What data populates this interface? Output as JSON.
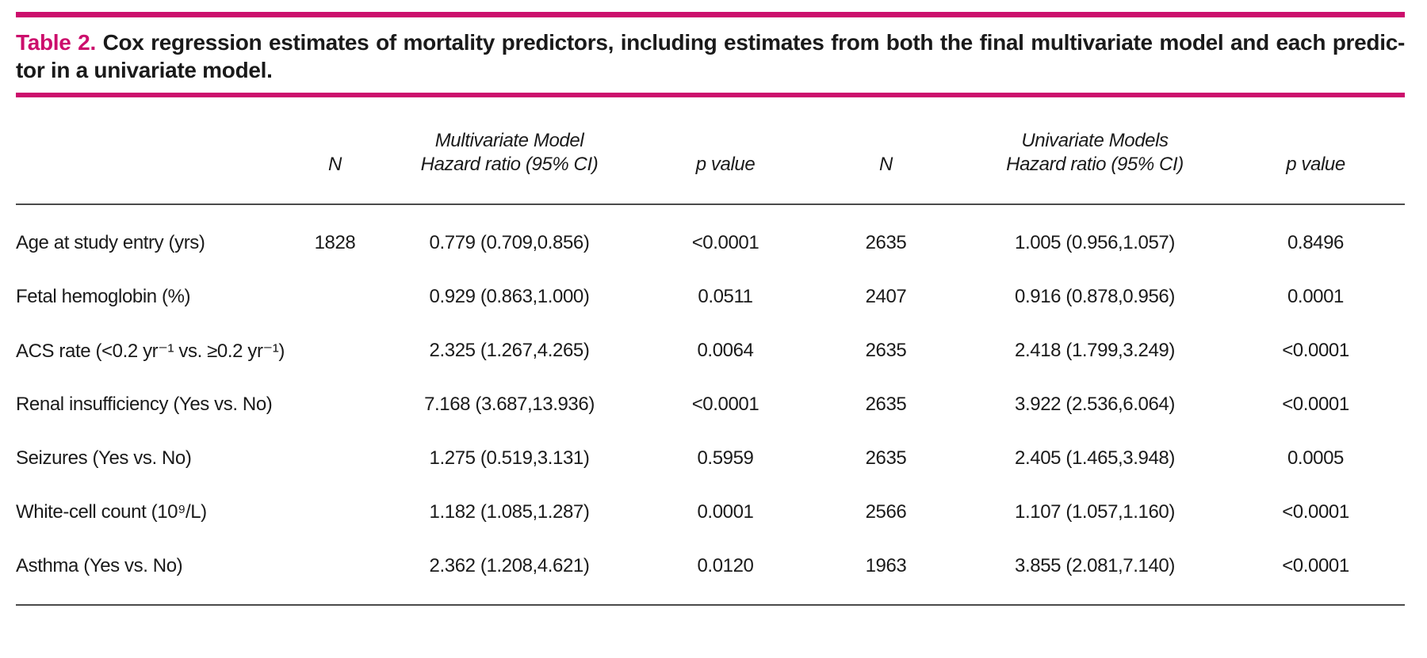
{
  "colors": {
    "accent": "#cc0e6c",
    "text": "#1a1a1a",
    "thin_rule": "#4a4a4a"
  },
  "title": {
    "label": "Table 2.",
    "line1": "Cox regression estimates of mortality predictors, including estimates from both the final multivariate model and each predic-",
    "line2": "tor in a univariate model."
  },
  "table": {
    "group_headers": {
      "multivariate": "Multivariate Model",
      "univariate": "Univariate Models"
    },
    "col_headers": {
      "n_multi": "N",
      "hr_multi": "Hazard ratio (95% CI)",
      "p_multi": "p value",
      "n_uni": "N",
      "hr_uni": "Hazard ratio (95% CI)",
      "p_uni": "p value"
    },
    "rows": [
      {
        "predictor": "Age at study entry  (yrs)",
        "n_multi": "1828",
        "hr_multi": "0.779 (0.709,0.856)",
        "p_multi": "<0.0001",
        "n_uni": "2635",
        "hr_uni": "1.005 (0.956,1.057)",
        "p_uni": "0.8496"
      },
      {
        "predictor": "Fetal hemoglobin (%)",
        "n_multi": "",
        "hr_multi": "0.929 (0.863,1.000)",
        "p_multi": "0.0511",
        "n_uni": "2407",
        "hr_uni": "0.916 (0.878,0.956)",
        "p_uni": "0.0001"
      },
      {
        "predictor": "ACS rate (<0.2 yr⁻¹ vs. ≥0.2 yr⁻¹)",
        "n_multi": "",
        "hr_multi": "2.325 (1.267,4.265)",
        "p_multi": "0.0064",
        "n_uni": "2635",
        "hr_uni": "2.418 (1.799,3.249)",
        "p_uni": "<0.0001"
      },
      {
        "predictor": "Renal insufficiency  (Yes vs. No)",
        "n_multi": "",
        "hr_multi": "7.168 (3.687,13.936)",
        "p_multi": "<0.0001",
        "n_uni": "2635",
        "hr_uni": "3.922 (2.536,6.064)",
        "p_uni": "<0.0001"
      },
      {
        "predictor": "Seizures (Yes vs. No)",
        "n_multi": "",
        "hr_multi": "1.275 (0.519,3.131)",
        "p_multi": "0.5959",
        "n_uni": "2635",
        "hr_uni": "2.405 (1.465,3.948)",
        "p_uni": "0.0005"
      },
      {
        "predictor": "White-cell count (10⁹/L)",
        "n_multi": "",
        "hr_multi": "1.182 (1.085,1.287)",
        "p_multi": "0.0001",
        "n_uni": "2566",
        "hr_uni": "1.107 (1.057,1.160)",
        "p_uni": "<0.0001"
      },
      {
        "predictor": "Asthma (Yes vs. No)",
        "n_multi": "",
        "hr_multi": "2.362 (1.208,4.621)",
        "p_multi": "0.0120",
        "n_uni": "1963",
        "hr_uni": "3.855 (2.081,7.140)",
        "p_uni": "<0.0001"
      }
    ]
  }
}
